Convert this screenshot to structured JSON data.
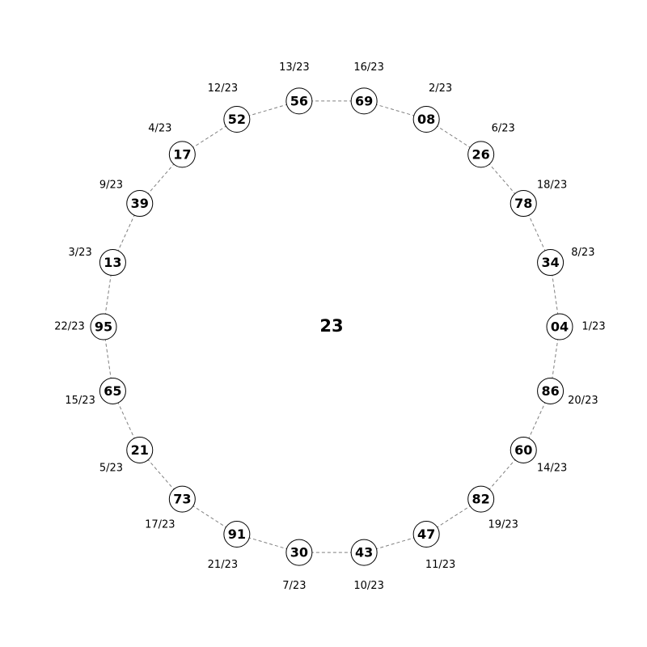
{
  "center_label": "23",
  "nodes": [
    {
      "label": "04",
      "fraction": "1/23"
    },
    {
      "label": "34",
      "fraction": "8/23"
    },
    {
      "label": "78",
      "fraction": "18/23"
    },
    {
      "label": "26",
      "fraction": "6/23"
    },
    {
      "label": "08",
      "fraction": "2/23"
    },
    {
      "label": "69",
      "fraction": "16/23"
    },
    {
      "label": "56",
      "fraction": "13/23"
    },
    {
      "label": "52",
      "fraction": "12/23"
    },
    {
      "label": "17",
      "fraction": "4/23"
    },
    {
      "label": "39",
      "fraction": "9/23"
    },
    {
      "label": "13",
      "fraction": "3/23"
    },
    {
      "label": "95",
      "fraction": "22/23"
    },
    {
      "label": "65",
      "fraction": "15/23"
    },
    {
      "label": "21",
      "fraction": "5/23"
    },
    {
      "label": "73",
      "fraction": "17/23"
    },
    {
      "label": "91",
      "fraction": "21/23"
    },
    {
      "label": "30",
      "fraction": "7/23"
    },
    {
      "label": "43",
      "fraction": "10/23"
    },
    {
      "label": "47",
      "fraction": "11/23"
    },
    {
      "label": "82",
      "fraction": "19/23"
    },
    {
      "label": "60",
      "fraction": "14/23"
    },
    {
      "label": "86",
      "fraction": "20/23"
    }
  ],
  "colors": {
    "node_fill": "#ffffff",
    "node_stroke": "#000000",
    "edge": "#808080",
    "text": "#000000"
  }
}
